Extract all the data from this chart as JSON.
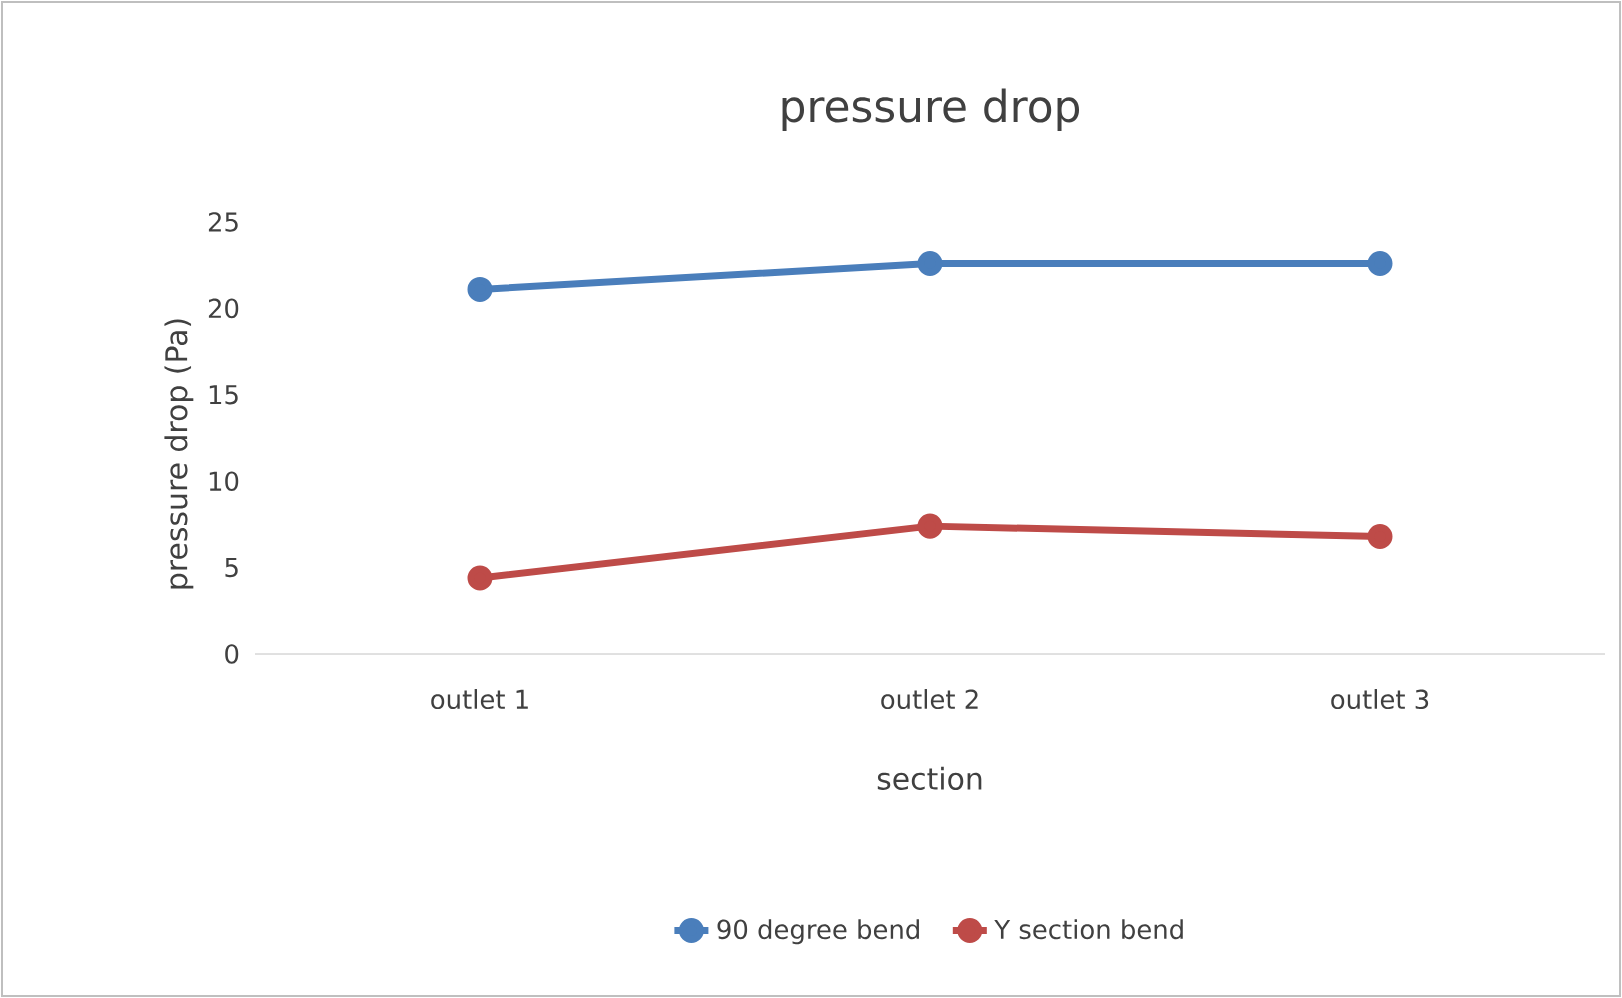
{
  "chart_data": {
    "type": "line",
    "title": "pressure drop",
    "xlabel": "section",
    "ylabel": "pressure drop (Pa)",
    "categories": [
      "outlet 1",
      "outlet 2",
      "outlet 3"
    ],
    "series": [
      {
        "name": "90 degree bend",
        "color": "#4a7ebb",
        "values": [
          21.1,
          22.6,
          22.6
        ]
      },
      {
        "name": "Y section bend",
        "color": "#be4b48",
        "values": [
          4.4,
          7.4,
          6.8
        ]
      }
    ],
    "ylim": [
      0,
      25
    ],
    "yticks": [
      0,
      5,
      10,
      15,
      20,
      25
    ],
    "grid": false,
    "legend": "bottom",
    "marker": "circle",
    "line_style": "solid"
  }
}
